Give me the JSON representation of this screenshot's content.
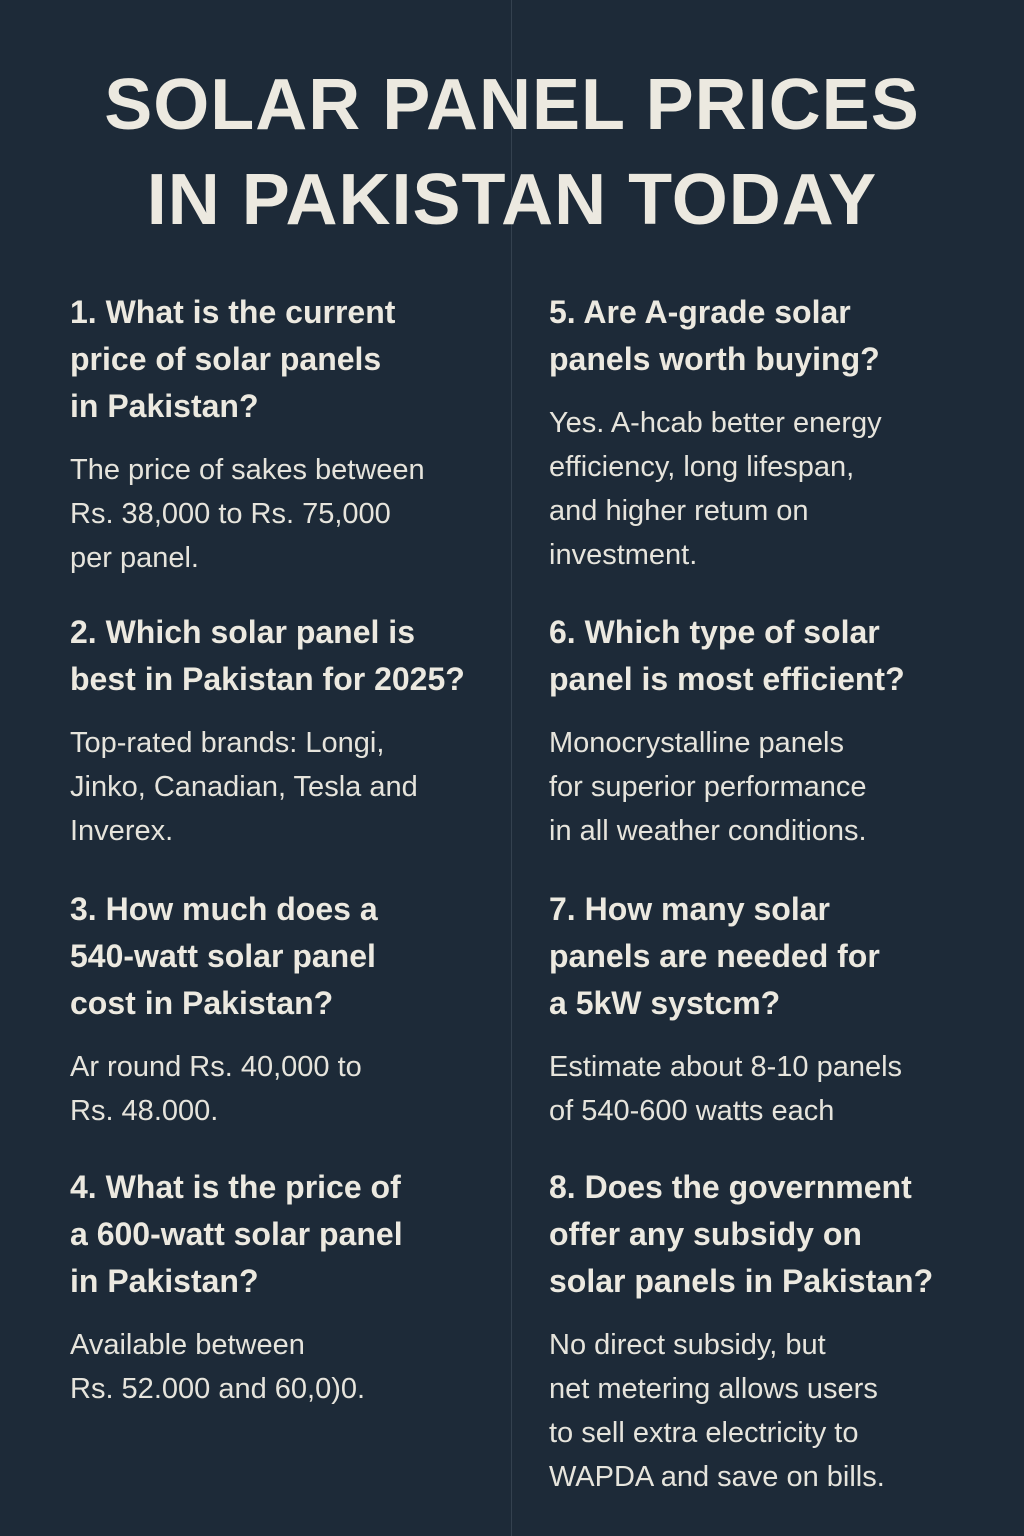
{
  "header": {
    "title_lines": [
      "SOLAR PANEL PRICES",
      "IN PAKISTAN TODAY"
    ]
  },
  "faq": [
    {
      "question_lines": [
        "1. What is the current",
        "price of solar panels",
        "in Pakistan?"
      ],
      "answer_lines": [
        "The price of sakes between",
        "Rs. 38,000 to Rs. 75,000",
        "per panel."
      ]
    },
    {
      "question_lines": [
        "2. Which solar panel is",
        "best in Pakistan for 2025?"
      ],
      "answer_lines": [
        "Top-rated brands: Longi,",
        "Jinko, Canadian, Tesla and",
        "Inverex."
      ]
    },
    {
      "question_lines": [
        "3. How much does a",
        "540-watt solar panel",
        "cost in Pakistan?"
      ],
      "answer_lines": [
        "Ar round Rs. 40,000 to",
        "Rs. 48.000."
      ]
    },
    {
      "question_lines": [
        "4. What is the price of",
        "a 600-watt solar panel",
        "in Pakistan?"
      ],
      "answer_lines": [
        "Available between",
        "Rs. 52.000 and 60,0)0."
      ]
    },
    {
      "question_lines": [
        "5. Are A-grade solar",
        "panels worth buying?"
      ],
      "answer_lines": [
        "Yes. A-hcab  better energy",
        "efficiency, long lifespan,",
        "and higher retum on",
        "investment."
      ]
    },
    {
      "question_lines": [
        "6. Which type of solar",
        "panel is most efficient?"
      ],
      "answer_lines": [
        "Monocrystalline panels",
        "for superior performance",
        "in all weather conditions."
      ]
    },
    {
      "question_lines": [
        "7. How many solar",
        "panels are needed for",
        "a 5kW systcm?"
      ],
      "answer_lines": [
        "Estimate about 8-10 panels",
        "of 540-600 watts each"
      ]
    },
    {
      "question_lines": [
        "8. Does the government",
        "offer any subsidy on",
        "solar panels in Pakistan?"
      ],
      "answer_lines": [
        "No direct subsidy, but",
        "net metering allows users",
        "to sell extra electricity to",
        "WAPDA and save on bills."
      ]
    }
  ]
}
